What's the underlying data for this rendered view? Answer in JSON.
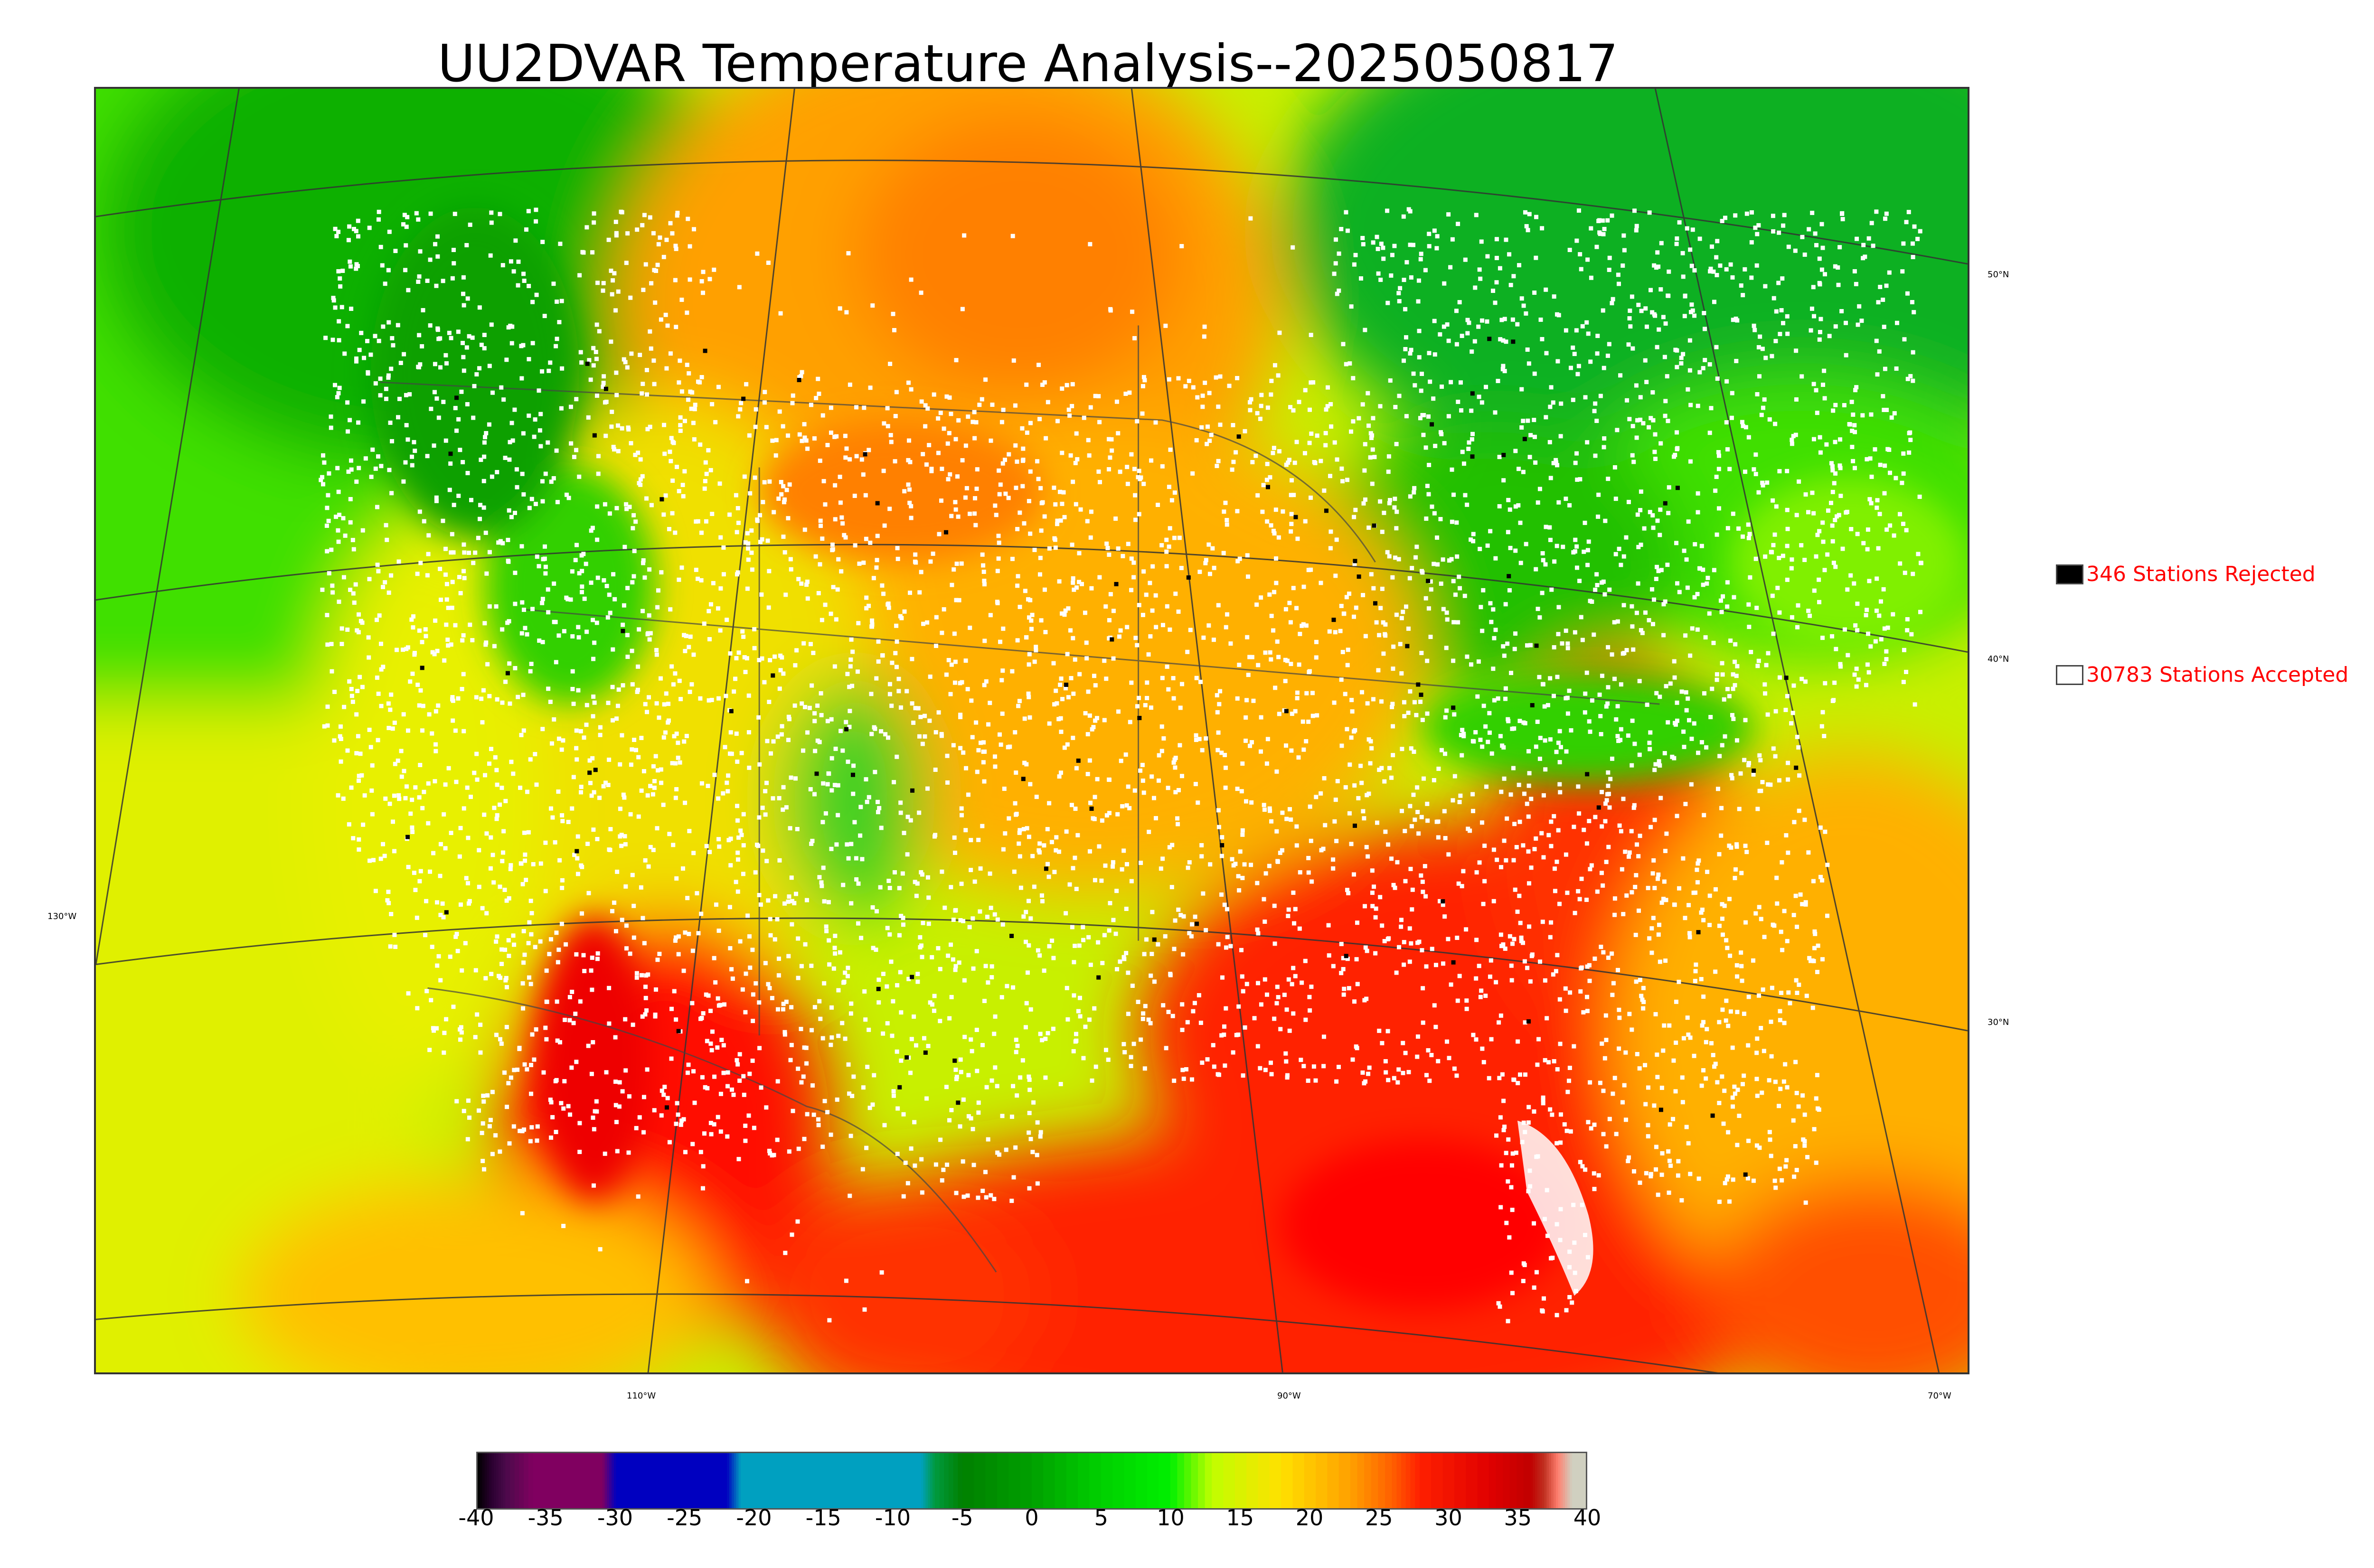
{
  "title": "UU2DVAR Temperature Analysis--2025050817",
  "legend": {
    "rejected": {
      "label": "346 Stations Rejected",
      "swatch_color": "#000000",
      "text_color": "#ff0000"
    },
    "accepted": {
      "label": "30783 Stations Accepted",
      "swatch_color": "#ffffff",
      "text_color": "#ff0000"
    }
  },
  "graticule": {
    "latitudes": [
      "50°N",
      "40°N",
      "30°N"
    ],
    "longitudes": [
      "130°W",
      "110°W",
      "90°W",
      "70°W"
    ]
  },
  "colorbar": {
    "ticks": [
      "-40",
      "-35",
      "-30",
      "-25",
      "-20",
      "-15",
      "-10",
      "-5",
      "0",
      "5",
      "10",
      "15",
      "20",
      "25",
      "30",
      "35",
      "40"
    ],
    "min": -40,
    "max": 40,
    "units": "",
    "stops": [
      {
        "v": -40,
        "color": "#000000"
      },
      {
        "v": -39,
        "color": "#2a0030"
      },
      {
        "v": -38,
        "color": "#4a0a4a"
      },
      {
        "v": -36,
        "color": "#800060"
      },
      {
        "v": -31,
        "color": "#800060"
      },
      {
        "v": -30,
        "color": "#0000c0"
      },
      {
        "v": -22,
        "color": "#0000c0"
      },
      {
        "v": -21,
        "color": "#00a0c0"
      },
      {
        "v": -8,
        "color": "#00a0c0"
      },
      {
        "v": -7,
        "color": "#009a40"
      },
      {
        "v": -5,
        "color": "#008000"
      },
      {
        "v": 0,
        "color": "#00a000"
      },
      {
        "v": 5,
        "color": "#00d000"
      },
      {
        "v": 10,
        "color": "#00f000"
      },
      {
        "v": 13,
        "color": "#c0ff00"
      },
      {
        "v": 18,
        "color": "#ffe000"
      },
      {
        "v": 23,
        "color": "#ffa000"
      },
      {
        "v": 26,
        "color": "#ff6000"
      },
      {
        "v": 28,
        "color": "#ff2000"
      },
      {
        "v": 33,
        "color": "#e00000"
      },
      {
        "v": 36,
        "color": "#c00000"
      },
      {
        "v": 37,
        "color": "#c03020"
      },
      {
        "v": 38,
        "color": "#ff8070"
      },
      {
        "v": 39,
        "color": "#d0d0c0"
      },
      {
        "v": 40,
        "color": "#d0d0c0"
      }
    ]
  },
  "map": {
    "description_colors": {
      "cold": "#00b000",
      "cool": "#00ff00",
      "mild": "#d8ff00",
      "warm": "#ffa000",
      "hot": "#ff2000",
      "station_accepted": "#ffffff",
      "station_rejected": "#000000"
    }
  }
}
